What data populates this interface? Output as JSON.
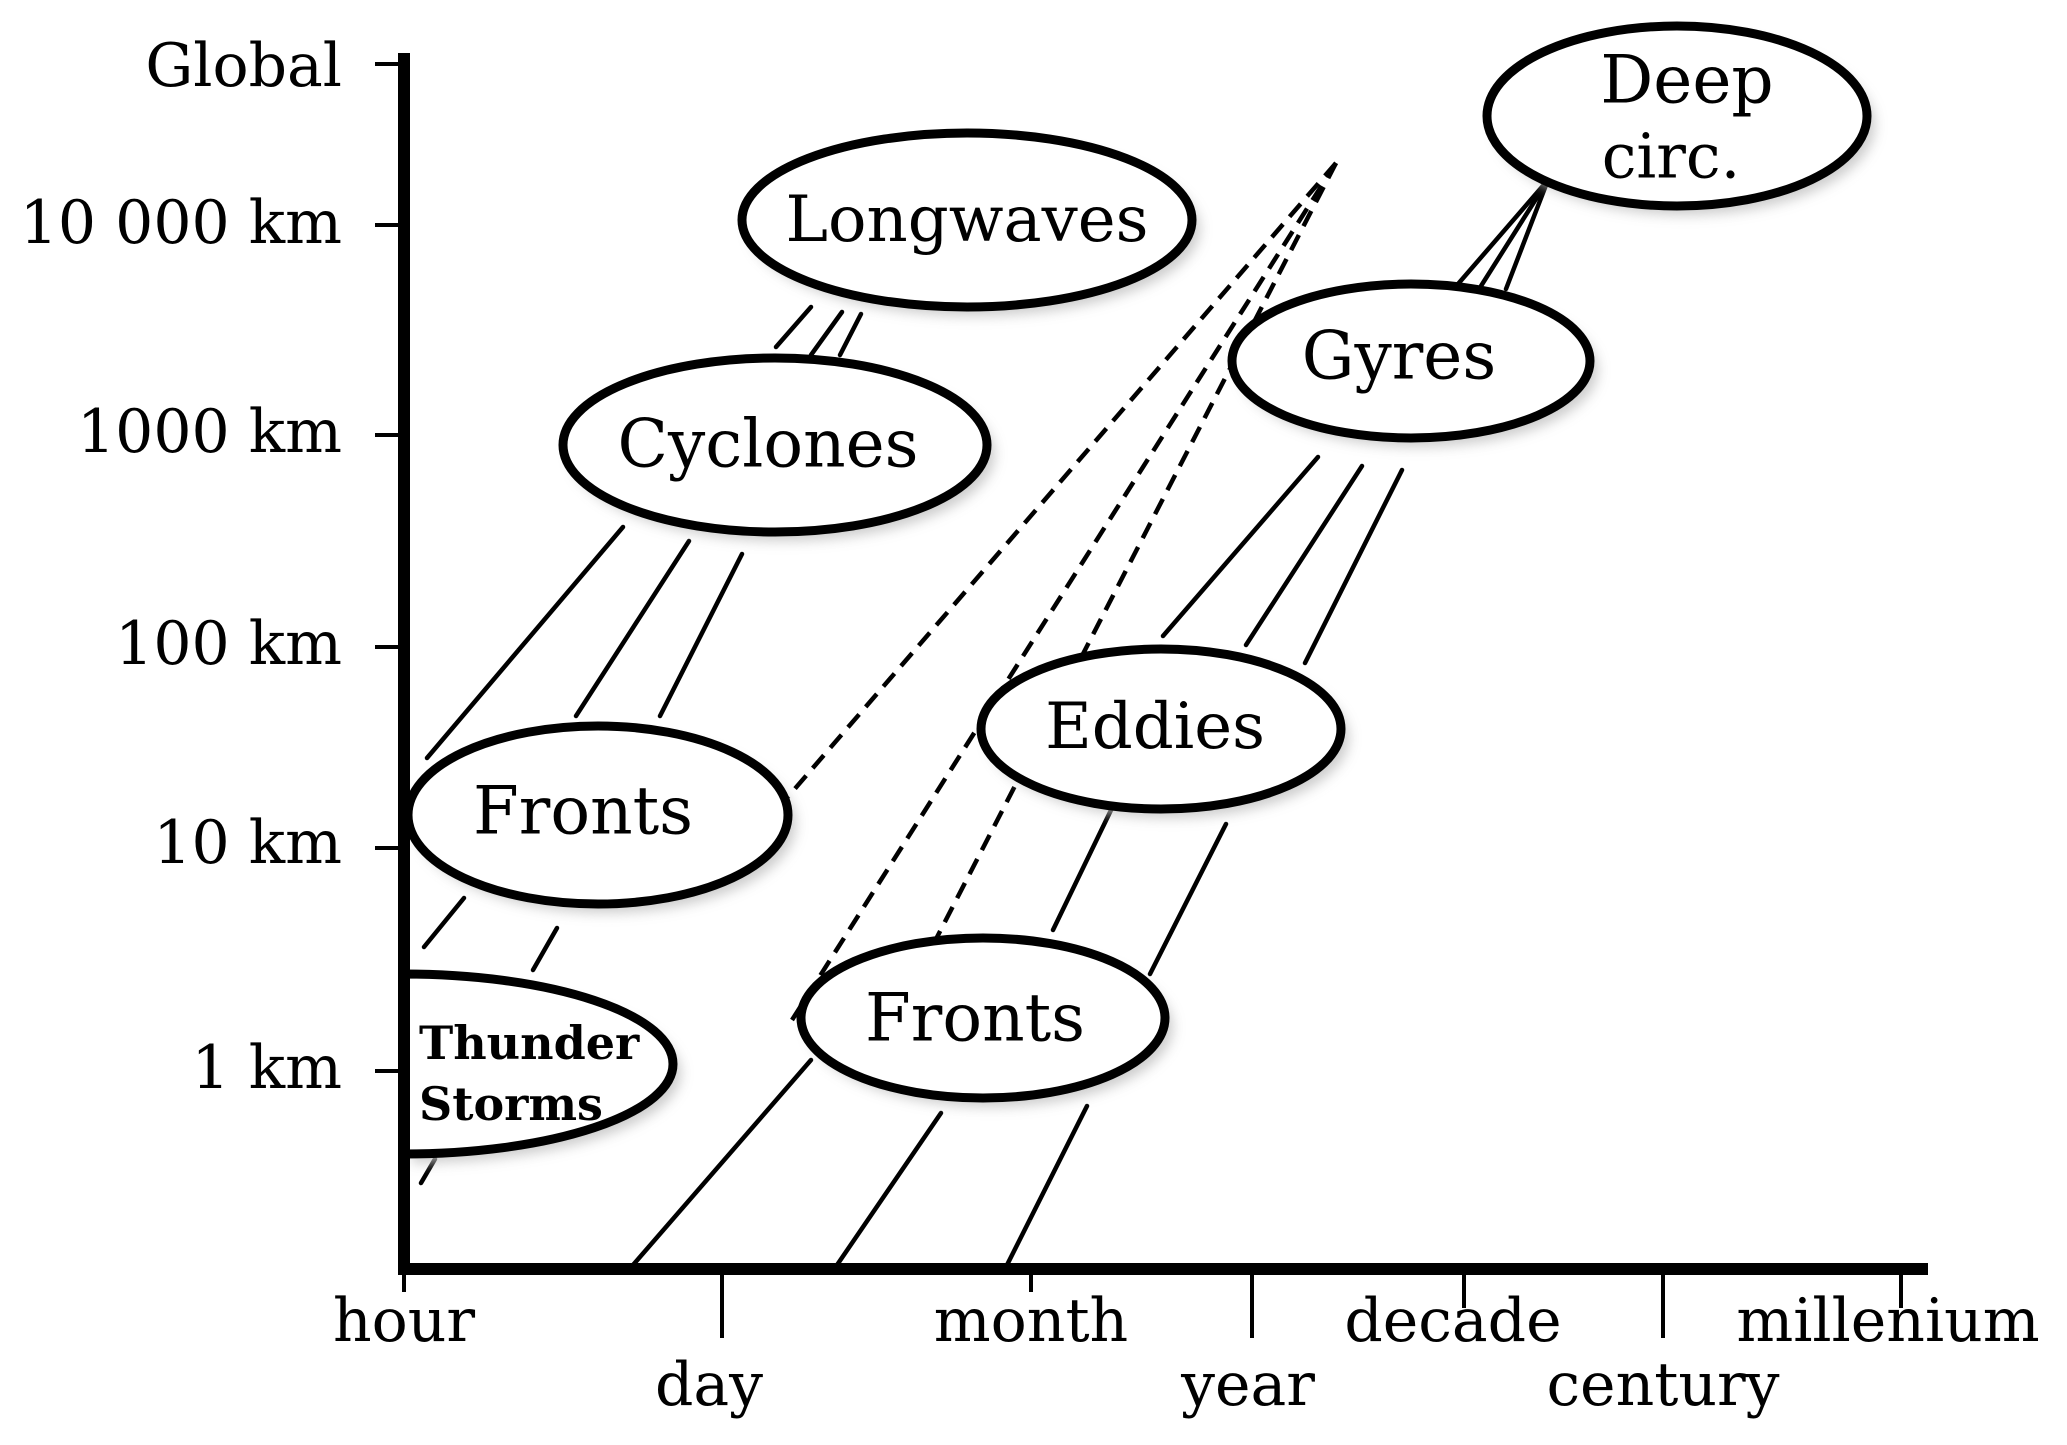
{
  "y_axis": {
    "ticks": [
      "Global",
      "10 000 km",
      "1000 km",
      "100 km",
      "10 km",
      "1 km"
    ]
  },
  "x_axis": {
    "ticks": [
      "hour",
      "day",
      "month",
      "year",
      "decade",
      "century",
      "millenium"
    ]
  },
  "phenomena": {
    "longwaves": "Longwaves",
    "cyclones": "Cyclones",
    "fronts_1": "Fronts",
    "thunderstorms": [
      "Thunder",
      "Storms"
    ],
    "deep_circ": [
      "Deep",
      "circ."
    ],
    "gyres": "Gyres",
    "eddies": "Eddies",
    "fronts_2": "Fronts"
  },
  "colors": {
    "ink": "#000000",
    "bubble_fill": "#ffffff",
    "shadow": "#c4c4c4",
    "background": "#ffffff"
  }
}
